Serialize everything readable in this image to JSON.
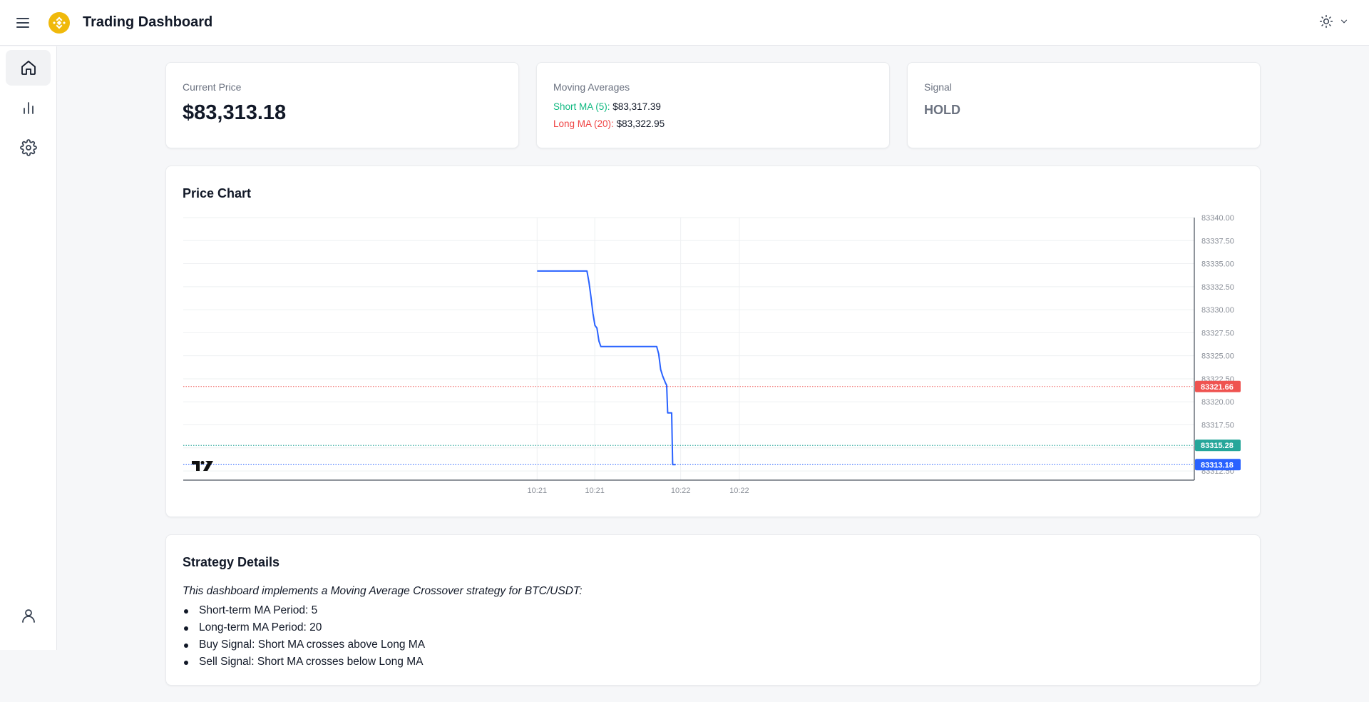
{
  "header": {
    "title": "Trading Dashboard",
    "menu_icon": "hamburger-menu-icon",
    "logo_icon": "binance-logo-icon",
    "theme_icon": "sun-icon",
    "accent_color": "#f0b90b"
  },
  "sidebar": {
    "items": [
      {
        "name": "home",
        "icon": "home-icon",
        "active": true
      },
      {
        "name": "analytics",
        "icon": "bar-chart-icon",
        "active": false
      },
      {
        "name": "settings",
        "icon": "gear-icon",
        "active": false
      }
    ],
    "profile_icon": "user-icon"
  },
  "current_price": {
    "label": "Current Price",
    "value": "$83,313.18"
  },
  "moving_averages": {
    "label": "Moving Averages",
    "short_label": "Short MA (5):",
    "short_value": "$83,317.39",
    "long_label": "Long MA (20):",
    "long_value": "$83,322.95"
  },
  "signal": {
    "label": "Signal",
    "value": "HOLD"
  },
  "price_chart": {
    "title": "Price Chart"
  },
  "chart_data": {
    "type": "line",
    "title": "Price Chart",
    "ylim": [
      83311.5,
      83340.0
    ],
    "y_ticks": [
      "83340.00",
      "83337.50",
      "83335.00",
      "83332.50",
      "83330.00",
      "83327.50",
      "83325.00",
      "83322.50",
      "83320.00",
      "83317.50",
      "83315.00",
      "83312.50"
    ],
    "x_tick_labels": [
      "10:21",
      "10:21",
      "10:22",
      "10:22"
    ],
    "series": [
      {
        "name": "BTC/USDT",
        "color": "#2962ff",
        "points": [
          [
            0.0,
            83334.2
          ],
          [
            0.08,
            83334.2
          ],
          [
            0.16,
            83334.2
          ],
          [
            0.25,
            83334.2
          ],
          [
            0.26,
            83333.0
          ],
          [
            0.27,
            83331.4
          ],
          [
            0.28,
            83329.6
          ],
          [
            0.29,
            83328.3
          ],
          [
            0.3,
            83328.0
          ],
          [
            0.31,
            83326.6
          ],
          [
            0.32,
            83326.0
          ],
          [
            0.4,
            83326.0
          ],
          [
            0.5,
            83326.0
          ],
          [
            0.6,
            83326.0
          ],
          [
            0.61,
            83325.2
          ],
          [
            0.62,
            83323.5
          ],
          [
            0.63,
            83322.8
          ],
          [
            0.645,
            83322.0
          ],
          [
            0.65,
            83321.8
          ],
          [
            0.655,
            83318.8
          ],
          [
            0.675,
            83318.8
          ],
          [
            0.68,
            83313.18
          ],
          [
            0.695,
            83313.18
          ]
        ]
      }
    ],
    "price_lines": [
      {
        "label": "83321.66",
        "value": 83321.66,
        "color": "#ef5350"
      },
      {
        "label": "83315.28",
        "value": 83315.28,
        "color": "#26a69a"
      },
      {
        "label": "83313.18",
        "value": 83313.18,
        "color": "#2962ff"
      }
    ],
    "watermark_icon": "tradingview-logo-icon"
  },
  "strategy": {
    "title": "Strategy Details",
    "intro": "This dashboard implements a Moving Average Crossover strategy for BTC/USDT:",
    "items": [
      "Short-term MA Period: 5",
      "Long-term MA Period: 20",
      "Buy Signal: Short MA crosses above Long MA",
      "Sell Signal: Short MA crosses below Long MA"
    ]
  }
}
